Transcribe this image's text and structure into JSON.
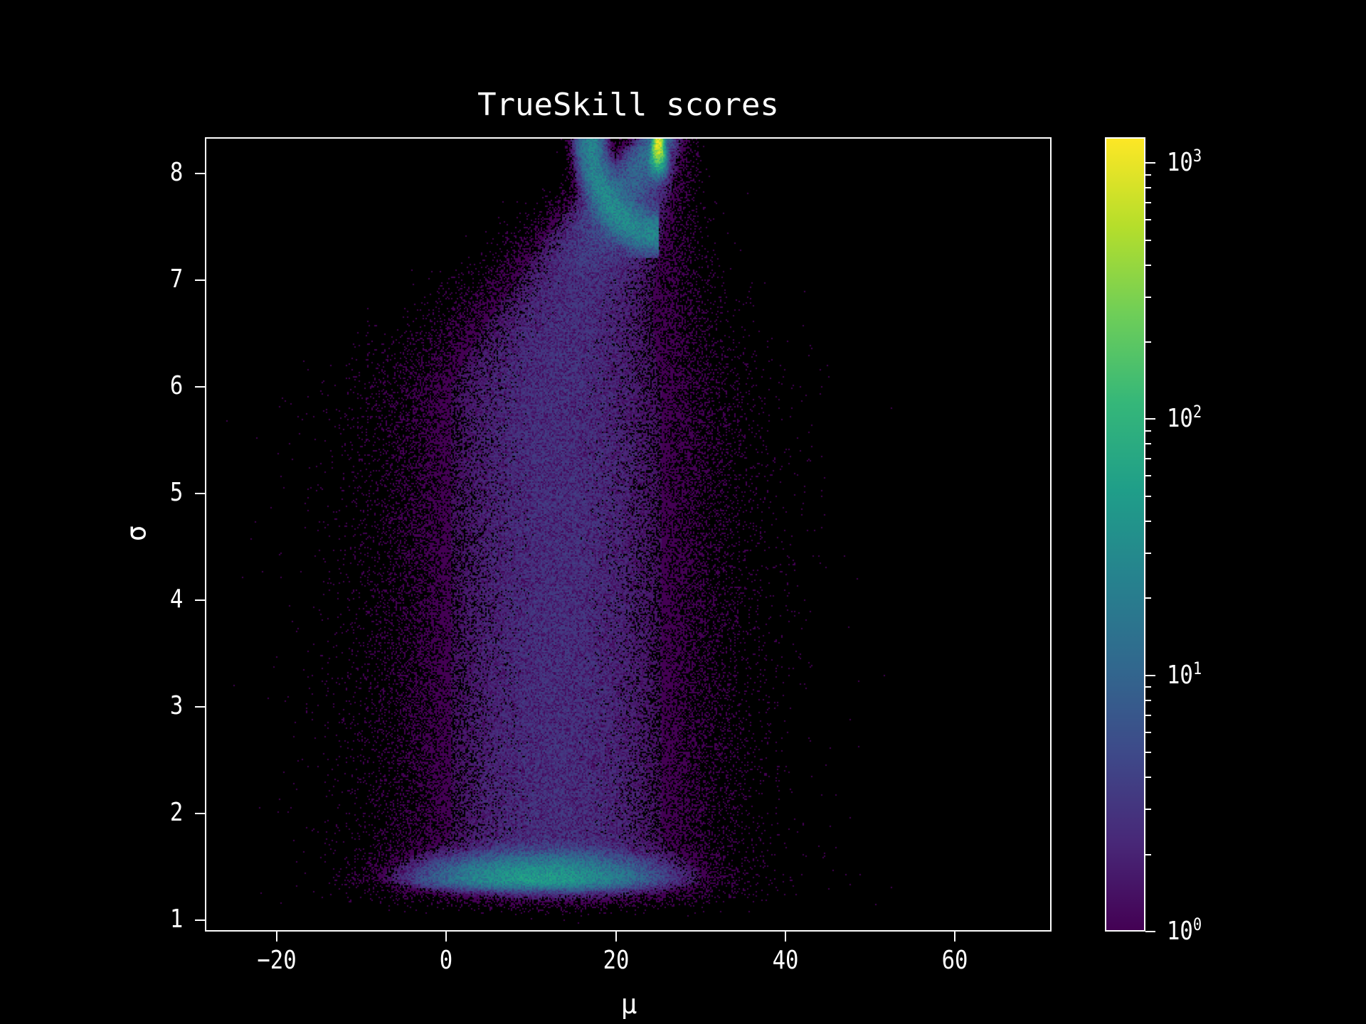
{
  "chart_data": {
    "type": "heatmap",
    "title": "TrueSkill scores",
    "xlabel": "μ",
    "ylabel": "σ",
    "xlim": [
      -28.5,
      71.4
    ],
    "ylim": [
      0.89,
      8.34
    ],
    "xticks": [
      -20,
      0,
      20,
      40,
      60
    ],
    "yticks": [
      1,
      2,
      3,
      4,
      5,
      6,
      7,
      8
    ],
    "grid": false,
    "colorbar": {
      "scale": "log",
      "colormap": "viridis",
      "range": [
        1,
        1260
      ],
      "ticks": [
        {
          "base": "10",
          "exp": "0"
        },
        {
          "base": "10",
          "exp": "1"
        },
        {
          "base": "10",
          "exp": "2"
        },
        {
          "base": "10",
          "exp": "3"
        }
      ],
      "tick_values": [
        1,
        10,
        100,
        1000
      ]
    },
    "regions": [
      {
        "desc_mu": 25,
        "desc_sigma": 8.33,
        "count": 1000
      },
      {
        "desc_mu": 21,
        "desc_sigma": 7.7,
        "count": 40
      },
      {
        "desc_mu": 11,
        "desc_sigma": 1.38,
        "count": 50
      },
      {
        "desc_mu": 14,
        "desc_sigma": 4.0,
        "count": 3
      }
    ]
  },
  "colors": {
    "background": "#000000",
    "axes": "#ffffff"
  }
}
